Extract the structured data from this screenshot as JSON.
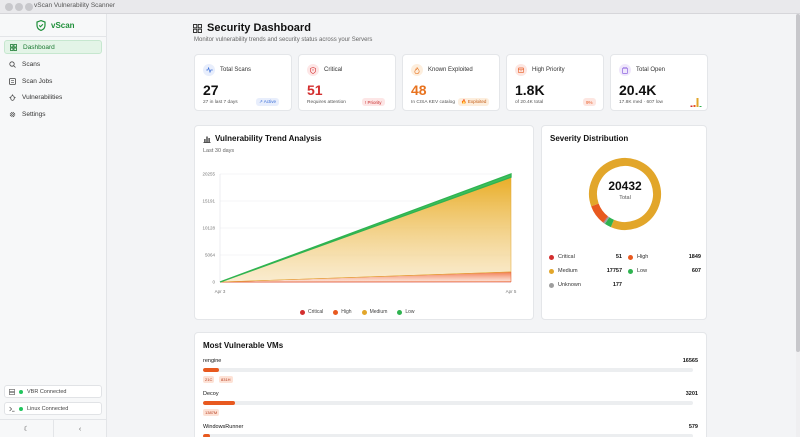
{
  "window": {
    "title": "vScan Vulnerability Scanner"
  },
  "sidebar": {
    "brand": "vScan",
    "items": [
      {
        "label": "Dashboard",
        "icon": "dashboard-icon"
      },
      {
        "label": "Scans",
        "icon": "search-icon"
      },
      {
        "label": "Scan Jobs",
        "icon": "list-icon"
      },
      {
        "label": "Vulnerabilities",
        "icon": "bug-icon"
      },
      {
        "label": "Settings",
        "icon": "gear-icon"
      }
    ],
    "connections": [
      {
        "label": "VBR Connected",
        "status": "connected"
      },
      {
        "label": "Linux Connected",
        "status": "connected"
      }
    ],
    "footer": {
      "theme_glyph": "☾",
      "collapse_glyph": "‹"
    }
  },
  "header": {
    "title": "Security Dashboard",
    "subtitle": "Monitor vulnerability trends and security status across your Servers"
  },
  "stats": [
    {
      "label": "Total Scans",
      "value": "27",
      "sub": "27 in last 7 days",
      "badge": "↗ Active",
      "icon": "activity-icon",
      "color": "#111111"
    },
    {
      "label": "Critical",
      "value": "51",
      "sub": "Requires attention",
      "badge": "! Priority",
      "icon": "shield-alert-icon",
      "color": "#d32f2f"
    },
    {
      "label": "Known Exploited",
      "value": "48",
      "sub": "In CISA KEV catalog",
      "badge": "🔥 Exploited",
      "icon": "flame-icon",
      "color": "#e8731f"
    },
    {
      "label": "High Priority",
      "value": "1.8K",
      "sub": "of 20.4K total",
      "badge": "9%",
      "icon": "calendar-alert-icon",
      "color": "#111111"
    },
    {
      "label": "Total Open",
      "value": "20.4K",
      "sub": "17.8K med · 607 low",
      "badge": "",
      "icon": "clipboard-icon",
      "color": "#111111"
    }
  ],
  "trend": {
    "title": "Vulnerability Trend Analysis",
    "subtitle": "Last 30 days"
  },
  "chart_data": {
    "type": "area",
    "x": [
      "Apr 3",
      "Apr 5"
    ],
    "series": [
      {
        "name": "Critical",
        "values": [
          0,
          51
        ],
        "color": "#d32f2f"
      },
      {
        "name": "High",
        "values": [
          0,
          1849
        ],
        "color": "#e8591f"
      },
      {
        "name": "Medium",
        "values": [
          0,
          17757
        ],
        "color": "#e2a62a"
      },
      {
        "name": "Low",
        "values": [
          0,
          607
        ],
        "color": "#2fb350"
      }
    ],
    "stacked": true,
    "y_ticks": [
      "0",
      "5064",
      "10128",
      "15191",
      "20255"
    ],
    "ylim": [
      0,
      20255
    ],
    "grid": true,
    "legend": "bottom"
  },
  "severity": {
    "title": "Severity Distribution",
    "total": "20432",
    "total_label": "Total",
    "items": [
      {
        "label": "Critical",
        "value": "51",
        "color": "#d32f2f"
      },
      {
        "label": "High",
        "value": "1849",
        "color": "#e8591f"
      },
      {
        "label": "Medium",
        "value": "17757",
        "color": "#e2a62a"
      },
      {
        "label": "Low",
        "value": "607",
        "color": "#2fb350"
      },
      {
        "label": "Unknown",
        "value": "177",
        "color": "#9e9e9e"
      }
    ]
  },
  "vms": {
    "title": "Most Vulnerable VMs",
    "rows": [
      {
        "name": "rengine",
        "count": "16565",
        "tags": [
          "21C",
          "831H"
        ],
        "fill": 0.033
      },
      {
        "name": "Decoy",
        "count": "3201",
        "tags": [
          "1387M"
        ],
        "fill": 0.065
      },
      {
        "name": "WindowsRunner",
        "count": "579",
        "tags": [],
        "fill": 0.015
      }
    ]
  }
}
